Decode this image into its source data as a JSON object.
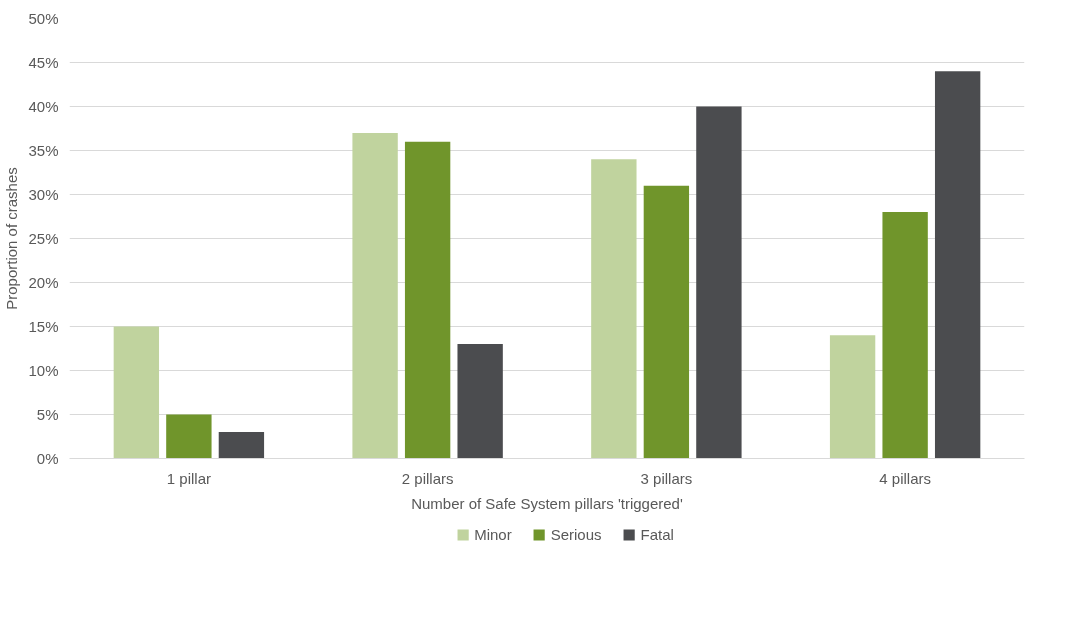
{
  "chart_data": {
    "type": "bar",
    "xlabel": "Number of Safe System pillars 'triggered'",
    "ylabel": "Proportion of crashes",
    "categories": [
      "1 pillar",
      "2 pillars",
      "3 pillars",
      "4 pillars"
    ],
    "series": [
      {
        "name": "Minor",
        "color": "#c0d39e",
        "values": [
          15,
          37,
          34,
          14
        ]
      },
      {
        "name": "Serious",
        "color": "#70952b",
        "values": [
          5,
          36,
          31,
          28
        ]
      },
      {
        "name": "Fatal",
        "color": "#4b4c4f",
        "values": [
          3,
          13,
          40,
          44
        ]
      }
    ],
    "ylim": [
      0,
      50
    ],
    "yticks": [
      {
        "value": 0,
        "label": "0%"
      },
      {
        "value": 5,
        "label": "5%"
      },
      {
        "value": 10,
        "label": "10%"
      },
      {
        "value": 15,
        "label": "15%"
      },
      {
        "value": 20,
        "label": "20%"
      },
      {
        "value": 25,
        "label": "25%"
      },
      {
        "value": 30,
        "label": "30%"
      },
      {
        "value": 35,
        "label": "35%"
      },
      {
        "value": 40,
        "label": "40%"
      },
      {
        "value": 45,
        "label": "45%"
      },
      {
        "value": 50,
        "label": "50%"
      }
    ],
    "grid": "y",
    "legend": "bottom"
  }
}
